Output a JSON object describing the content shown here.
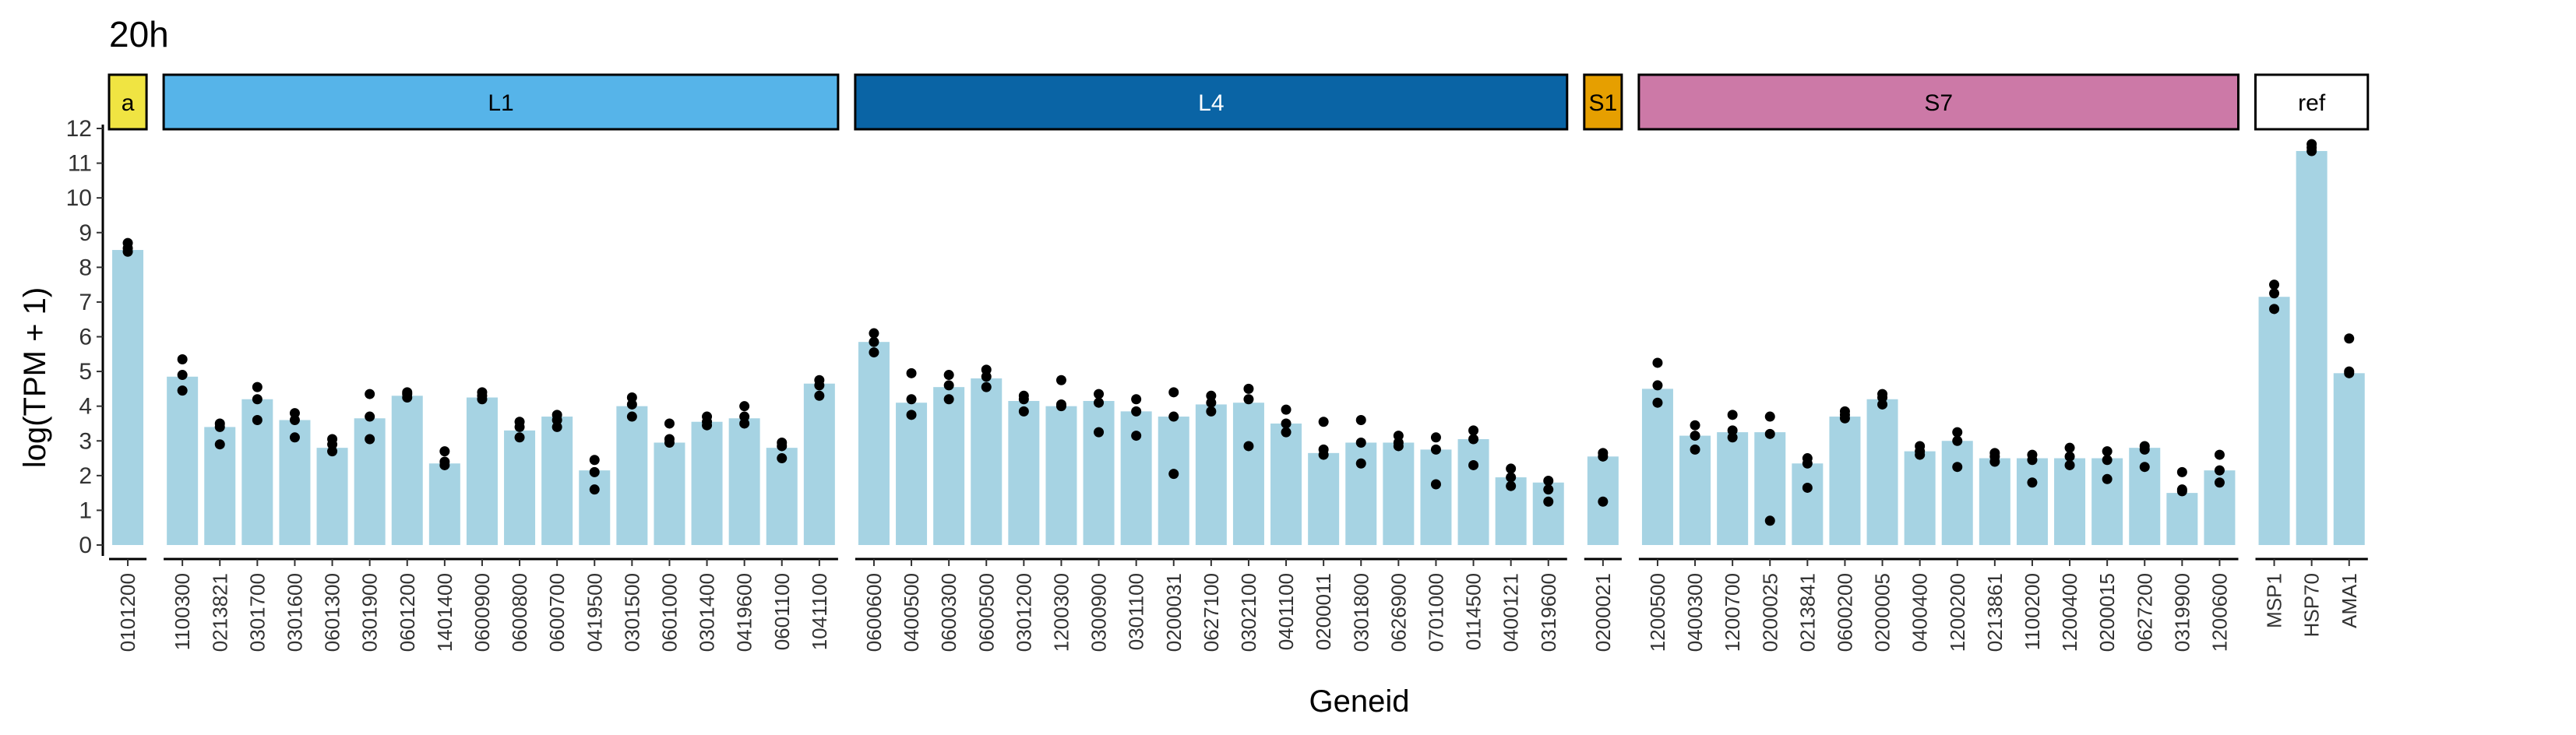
{
  "chart_data": {
    "type": "bar",
    "title": "20h",
    "xlabel": "Geneid",
    "ylabel": "log(TPM + 1)",
    "ylim": [
      0,
      12
    ],
    "yticks": [
      0,
      1,
      2,
      3,
      4,
      5,
      6,
      7,
      8,
      9,
      10,
      11,
      12
    ],
    "grid": false,
    "bar_color": "#a6d3e3",
    "point_color": "#000000",
    "facets": [
      {
        "name": "a",
        "color": "#f0e442",
        "categories": [
          "0101200"
        ],
        "values": [
          8.5
        ],
        "points": [
          [
            8.45,
            8.55,
            8.7
          ]
        ]
      },
      {
        "name": "L1",
        "color": "#56b4e9",
        "categories": [
          "1100300",
          "0213821",
          "0301700",
          "0301600",
          "0601300",
          "0301900",
          "0601200",
          "1401400",
          "0600900",
          "0600800",
          "0600700",
          "0419500",
          "0301500",
          "0601000",
          "0301400",
          "0419600",
          "0601100",
          "1041100"
        ],
        "values": [
          4.85,
          3.4,
          4.2,
          3.6,
          2.8,
          3.65,
          4.3,
          2.35,
          4.25,
          3.3,
          3.7,
          2.15,
          4.0,
          2.95,
          3.55,
          3.65,
          2.8,
          4.65
        ],
        "points": [
          [
            4.45,
            4.9,
            5.35
          ],
          [
            2.9,
            3.4,
            3.5
          ],
          [
            3.6,
            4.2,
            4.55
          ],
          [
            3.1,
            3.6,
            3.8
          ],
          [
            2.7,
            2.9,
            3.05
          ],
          [
            3.05,
            3.7,
            4.35
          ],
          [
            4.25,
            4.35,
            4.4
          ],
          [
            2.3,
            2.4,
            2.7
          ],
          [
            4.2,
            4.3,
            4.4
          ],
          [
            3.1,
            3.4,
            3.55
          ],
          [
            3.4,
            3.6,
            3.75
          ],
          [
            1.6,
            2.1,
            2.45
          ],
          [
            3.7,
            4.05,
            4.25
          ],
          [
            2.95,
            3.05,
            3.5
          ],
          [
            3.45,
            3.55,
            3.7
          ],
          [
            3.5,
            3.7,
            4.0
          ],
          [
            2.5,
            2.85,
            2.95
          ],
          [
            4.3,
            4.6,
            4.75
          ]
        ]
      },
      {
        "name": "L4",
        "color": "#0a64a5",
        "categories": [
          "0600600",
          "0400500",
          "0600300",
          "0600500",
          "0301200",
          "1200300",
          "0300900",
          "0301100",
          "0200031",
          "0627100",
          "0302100",
          "0401100",
          "0200011",
          "0301800",
          "0626900",
          "0701000",
          "0114500",
          "0400121",
          "0319600"
        ],
        "values": [
          5.85,
          4.1,
          4.55,
          4.8,
          4.15,
          4.0,
          4.15,
          3.85,
          3.7,
          4.05,
          4.1,
          3.5,
          2.65,
          2.95,
          2.95,
          2.75,
          3.05,
          1.95,
          1.8
        ],
        "points": [
          [
            5.55,
            5.85,
            6.1
          ],
          [
            3.75,
            4.2,
            4.95
          ],
          [
            4.2,
            4.6,
            4.9
          ],
          [
            4.55,
            4.85,
            5.05
          ],
          [
            3.85,
            4.2,
            4.3
          ],
          [
            4.0,
            4.05,
            4.75
          ],
          [
            3.25,
            4.1,
            4.35
          ],
          [
            3.15,
            3.85,
            4.2
          ],
          [
            2.05,
            3.7,
            4.4
          ],
          [
            3.85,
            4.1,
            4.3
          ],
          [
            2.85,
            4.2,
            4.5
          ],
          [
            3.25,
            3.5,
            3.9
          ],
          [
            2.6,
            2.75,
            3.55
          ],
          [
            2.35,
            2.95,
            3.6
          ],
          [
            2.85,
            2.95,
            3.15
          ],
          [
            1.75,
            2.75,
            3.1
          ],
          [
            2.3,
            3.05,
            3.3
          ],
          [
            1.7,
            1.95,
            2.2
          ],
          [
            1.25,
            1.6,
            1.85
          ]
        ]
      },
      {
        "name": "S1",
        "color": "#e69f00",
        "categories": [
          "0200021"
        ],
        "values": [
          2.55
        ],
        "points": [
          [
            1.25,
            2.55,
            2.65
          ]
        ]
      },
      {
        "name": "S7",
        "color": "#cc79a7",
        "categories": [
          "1200500",
          "0400300",
          "1200700",
          "0200025",
          "0213841",
          "0600200",
          "0200005",
          "0400400",
          "1200200",
          "0213861",
          "1100200",
          "1200400",
          "0200015",
          "0627200",
          "0319900",
          "1200600"
        ],
        "values": [
          4.5,
          3.15,
          3.25,
          3.25,
          2.35,
          3.7,
          4.2,
          2.7,
          3.0,
          2.5,
          2.5,
          2.5,
          2.5,
          2.8,
          1.5,
          2.15
        ],
        "points": [
          [
            4.1,
            4.6,
            5.25
          ],
          [
            2.75,
            3.15,
            3.45
          ],
          [
            3.1,
            3.3,
            3.75
          ],
          [
            0.7,
            3.2,
            3.7
          ],
          [
            1.65,
            2.35,
            2.5
          ],
          [
            3.65,
            3.75,
            3.85
          ],
          [
            4.05,
            4.25,
            4.35
          ],
          [
            2.6,
            2.7,
            2.85
          ],
          [
            2.25,
            3.0,
            3.25
          ],
          [
            2.4,
            2.55,
            2.65
          ],
          [
            1.8,
            2.45,
            2.6
          ],
          [
            2.3,
            2.55,
            2.8
          ],
          [
            1.9,
            2.45,
            2.7
          ],
          [
            2.25,
            2.75,
            2.85
          ],
          [
            1.55,
            1.6,
            2.1
          ],
          [
            1.8,
            2.15,
            2.6
          ]
        ]
      },
      {
        "name": "ref",
        "color": "#ffffff",
        "categories": [
          "MSP1",
          "HSP70",
          "AMA1"
        ],
        "values": [
          7.15,
          11.35,
          4.95
        ],
        "points": [
          [
            6.8,
            7.25,
            7.5
          ],
          [
            11.35,
            11.45,
            11.55
          ],
          [
            4.95,
            5.0,
            5.95
          ]
        ]
      }
    ]
  }
}
